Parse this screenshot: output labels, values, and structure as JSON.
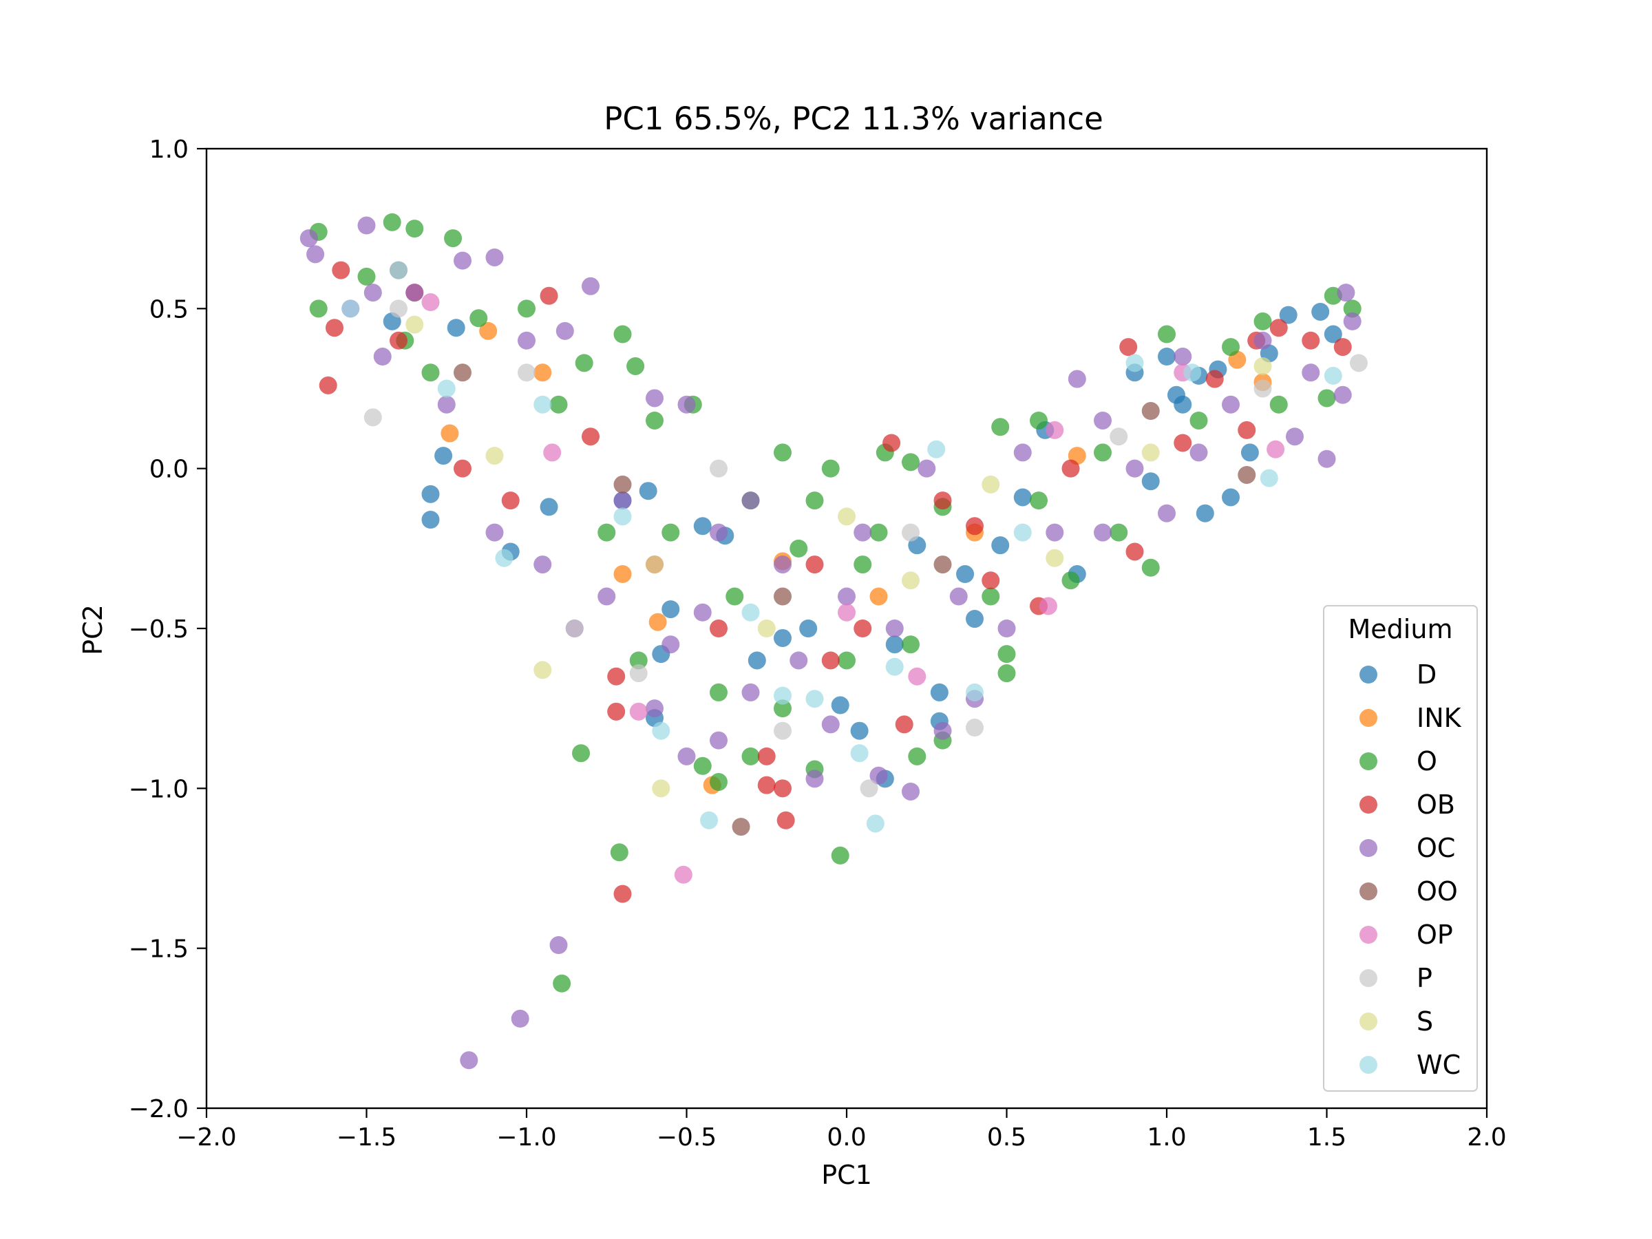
{
  "chart_data": {
    "type": "scatter",
    "title": "PC1 65.5%, PC2 11.3% variance",
    "xlabel": "PC1",
    "ylabel": "PC2",
    "xlim": [
      -2.0,
      2.0
    ],
    "ylim": [
      -2.0,
      1.0
    ],
    "xticks": [
      -2.0,
      -1.5,
      -1.0,
      -0.5,
      0.0,
      0.5,
      1.0,
      1.5,
      2.0
    ],
    "xtick_labels": [
      "−2.0",
      "−1.5",
      "−1.0",
      "−0.5",
      "0.0",
      "0.5",
      "1.0",
      "1.5",
      "2.0"
    ],
    "yticks": [
      -2.0,
      -1.5,
      -1.0,
      -0.5,
      0.0,
      0.5,
      1.0
    ],
    "ytick_labels": [
      "−2.0",
      "−1.5",
      "−1.0",
      "−0.5",
      "0.0",
      "0.5",
      "1.0"
    ],
    "grid": false,
    "legend": {
      "title": "Medium",
      "placement": "lower-right"
    },
    "series": [
      {
        "name": "D",
        "color": "#1f77b4",
        "points": [
          [
            -1.3,
            -0.16
          ],
          [
            -1.3,
            -0.08
          ],
          [
            -1.26,
            0.04
          ],
          [
            -1.22,
            0.44
          ],
          [
            -1.05,
            -0.26
          ],
          [
            -0.93,
            -0.12
          ],
          [
            -0.7,
            -0.1
          ],
          [
            -0.62,
            -0.07
          ],
          [
            -0.6,
            -0.78
          ],
          [
            -0.58,
            -0.58
          ],
          [
            -0.45,
            -0.18
          ],
          [
            -0.38,
            -0.21
          ],
          [
            -0.28,
            -0.6
          ],
          [
            -0.2,
            -0.53
          ],
          [
            -0.12,
            -0.5
          ],
          [
            -0.02,
            -0.74
          ],
          [
            0.04,
            -0.82
          ],
          [
            0.12,
            -0.97
          ],
          [
            0.15,
            -0.55
          ],
          [
            0.22,
            -0.24
          ],
          [
            0.29,
            -0.7
          ],
          [
            0.29,
            -0.79
          ],
          [
            0.37,
            -0.33
          ],
          [
            0.4,
            -0.47
          ],
          [
            0.48,
            -0.24
          ],
          [
            0.55,
            -0.09
          ],
          [
            0.72,
            -0.33
          ],
          [
            0.9,
            0.3
          ],
          [
            0.95,
            -0.04
          ],
          [
            1.03,
            0.23
          ],
          [
            1.05,
            0.2
          ],
          [
            1.1,
            0.29
          ],
          [
            1.12,
            -0.14
          ],
          [
            1.16,
            0.31
          ],
          [
            1.2,
            -0.09
          ],
          [
            1.26,
            0.05
          ],
          [
            1.32,
            0.36
          ],
          [
            1.38,
            0.48
          ],
          [
            1.48,
            0.49
          ],
          [
            1.52,
            0.42
          ],
          [
            -1.42,
            0.46
          ],
          [
            -0.55,
            -0.44
          ],
          [
            0.62,
            0.12
          ],
          [
            1.0,
            0.35
          ]
        ]
      },
      {
        "name": "INK",
        "color": "#ff7f0e",
        "points": [
          [
            -1.24,
            0.11
          ],
          [
            -1.12,
            0.43
          ],
          [
            -0.7,
            -0.33
          ],
          [
            -0.59,
            -0.48
          ],
          [
            -0.42,
            -0.99
          ],
          [
            -0.2,
            -0.29
          ],
          [
            0.72,
            0.04
          ],
          [
            1.22,
            0.34
          ],
          [
            -0.95,
            0.3
          ],
          [
            0.1,
            -0.4
          ],
          [
            0.4,
            -0.2
          ],
          [
            1.3,
            0.27
          ]
        ]
      },
      {
        "name": "O",
        "color": "#2ca02c",
        "points": [
          [
            -1.65,
            0.74
          ],
          [
            -1.65,
            0.5
          ],
          [
            -1.42,
            0.77
          ],
          [
            -1.35,
            0.75
          ],
          [
            -1.23,
            0.72
          ],
          [
            -1.0,
            0.5
          ],
          [
            -0.82,
            0.33
          ],
          [
            -0.7,
            0.42
          ],
          [
            -0.66,
            0.32
          ],
          [
            -0.48,
            0.2
          ],
          [
            -0.6,
            0.15
          ],
          [
            -0.83,
            -0.89
          ],
          [
            -0.71,
            -1.2
          ],
          [
            -0.89,
            -1.61
          ],
          [
            -0.02,
            -1.21
          ],
          [
            -0.45,
            -0.93
          ],
          [
            -0.4,
            -0.98
          ],
          [
            -0.3,
            -0.9
          ],
          [
            -0.1,
            -0.94
          ],
          [
            0.22,
            -0.9
          ],
          [
            0.3,
            -0.85
          ],
          [
            0.5,
            -0.58
          ],
          [
            0.5,
            -0.64
          ],
          [
            0.48,
            0.13
          ],
          [
            0.6,
            0.15
          ],
          [
            1.0,
            0.42
          ],
          [
            1.3,
            0.46
          ],
          [
            1.52,
            0.54
          ],
          [
            1.58,
            0.5
          ],
          [
            1.5,
            0.22
          ],
          [
            0.95,
            -0.31
          ],
          [
            0.7,
            -0.35
          ],
          [
            0.2,
            0.02
          ],
          [
            0.12,
            0.05
          ],
          [
            -0.2,
            0.05
          ],
          [
            -0.3,
            -0.1
          ],
          [
            -0.55,
            -0.2
          ],
          [
            -1.15,
            0.47
          ],
          [
            -1.3,
            0.3
          ],
          [
            -0.9,
            0.2
          ],
          [
            -0.1,
            -0.1
          ],
          [
            0.1,
            -0.2
          ],
          [
            0.3,
            -0.12
          ],
          [
            0.6,
            -0.1
          ],
          [
            0.8,
            0.05
          ],
          [
            1.1,
            0.15
          ],
          [
            1.2,
            0.38
          ],
          [
            -1.5,
            0.6
          ],
          [
            -1.38,
            0.4
          ],
          [
            -0.65,
            -0.6
          ],
          [
            -0.4,
            -0.7
          ],
          [
            -0.2,
            -0.75
          ],
          [
            0.0,
            -0.6
          ],
          [
            0.2,
            -0.55
          ],
          [
            -0.75,
            -0.2
          ],
          [
            0.85,
            -0.2
          ],
          [
            1.35,
            0.2
          ],
          [
            -0.05,
            0.0
          ],
          [
            -0.15,
            -0.25
          ],
          [
            0.05,
            -0.3
          ],
          [
            -0.35,
            -0.4
          ],
          [
            0.45,
            -0.4
          ]
        ]
      },
      {
        "name": "OB",
        "color": "#d62728",
        "points": [
          [
            -1.62,
            0.26
          ],
          [
            -1.6,
            0.44
          ],
          [
            -1.58,
            0.62
          ],
          [
            -1.4,
            0.4
          ],
          [
            -0.93,
            0.54
          ],
          [
            -0.72,
            -0.65
          ],
          [
            -0.7,
            -1.33
          ],
          [
            -0.72,
            -0.76
          ],
          [
            -0.25,
            -0.9
          ],
          [
            -0.2,
            -1.0
          ],
          [
            -0.25,
            -0.99
          ],
          [
            -0.19,
            -1.1
          ],
          [
            -0.05,
            -0.6
          ],
          [
            0.18,
            -0.8
          ],
          [
            0.14,
            0.08
          ],
          [
            0.4,
            -0.18
          ],
          [
            0.6,
            -0.43
          ],
          [
            0.88,
            0.38
          ],
          [
            0.9,
            -0.26
          ],
          [
            1.05,
            0.08
          ],
          [
            1.28,
            0.4
          ],
          [
            1.35,
            0.44
          ],
          [
            1.45,
            0.4
          ],
          [
            1.55,
            0.38
          ],
          [
            -1.2,
            0.0
          ],
          [
            -1.05,
            -0.1
          ],
          [
            -0.8,
            0.1
          ],
          [
            -0.6,
            -0.3
          ],
          [
            -0.4,
            -0.5
          ],
          [
            -0.1,
            -0.3
          ],
          [
            0.05,
            -0.5
          ],
          [
            0.3,
            -0.1
          ],
          [
            0.7,
            0.0
          ],
          [
            1.15,
            0.28
          ],
          [
            -1.35,
            0.55
          ],
          [
            0.45,
            -0.35
          ],
          [
            1.25,
            0.12
          ]
        ]
      },
      {
        "name": "OC",
        "color": "#9467bd",
        "points": [
          [
            -1.68,
            0.72
          ],
          [
            -1.66,
            0.67
          ],
          [
            -1.5,
            0.76
          ],
          [
            -1.48,
            0.55
          ],
          [
            -1.35,
            0.55
          ],
          [
            -1.2,
            0.65
          ],
          [
            -1.1,
            0.66
          ],
          [
            -1.0,
            0.4
          ],
          [
            -0.88,
            0.43
          ],
          [
            -0.8,
            0.57
          ],
          [
            -0.6,
            0.22
          ],
          [
            -0.5,
            0.2
          ],
          [
            -1.18,
            -1.85
          ],
          [
            -1.02,
            -1.72
          ],
          [
            -0.9,
            -1.49
          ],
          [
            -0.5,
            -0.9
          ],
          [
            -0.4,
            -0.85
          ],
          [
            -0.3,
            -0.7
          ],
          [
            -0.1,
            -0.97
          ],
          [
            0.1,
            -0.96
          ],
          [
            0.2,
            -1.01
          ],
          [
            0.3,
            -0.82
          ],
          [
            0.4,
            -0.72
          ],
          [
            0.5,
            -0.5
          ],
          [
            0.72,
            0.28
          ],
          [
            1.05,
            0.35
          ],
          [
            1.3,
            0.4
          ],
          [
            1.56,
            0.55
          ],
          [
            1.58,
            0.46
          ],
          [
            1.55,
            0.23
          ],
          [
            1.5,
            0.03
          ],
          [
            1.4,
            0.1
          ],
          [
            1.0,
            -0.14
          ],
          [
            0.8,
            -0.2
          ],
          [
            0.0,
            -0.4
          ],
          [
            -0.2,
            -0.3
          ],
          [
            -0.4,
            -0.2
          ],
          [
            -0.7,
            -0.1
          ],
          [
            -0.95,
            -0.3
          ],
          [
            -1.1,
            -0.2
          ],
          [
            -1.25,
            0.2
          ],
          [
            -1.45,
            0.35
          ],
          [
            -0.75,
            -0.4
          ],
          [
            -0.55,
            -0.55
          ],
          [
            -0.15,
            -0.6
          ],
          [
            0.15,
            -0.5
          ],
          [
            0.35,
            -0.4
          ],
          [
            0.65,
            -0.2
          ],
          [
            0.9,
            0.0
          ],
          [
            1.2,
            0.2
          ],
          [
            1.45,
            0.3
          ],
          [
            -1.55,
            0.5
          ],
          [
            -0.3,
            -0.1
          ],
          [
            0.25,
            0.0
          ],
          [
            -0.6,
            -0.75
          ],
          [
            -0.45,
            -0.45
          ],
          [
            0.05,
            -0.2
          ],
          [
            0.55,
            0.05
          ],
          [
            -0.85,
            -0.5
          ],
          [
            1.1,
            0.05
          ],
          [
            -0.05,
            -0.8
          ],
          [
            0.8,
            0.15
          ]
        ]
      },
      {
        "name": "OO",
        "color": "#8c564b",
        "points": [
          [
            -1.4,
            0.62
          ],
          [
            -1.2,
            0.3
          ],
          [
            -0.33,
            -1.12
          ],
          [
            -0.2,
            -0.4
          ],
          [
            0.3,
            -0.3
          ],
          [
            0.95,
            0.18
          ],
          [
            1.25,
            -0.02
          ],
          [
            -0.7,
            -0.05
          ]
        ]
      },
      {
        "name": "OP",
        "color": "#e377c2",
        "points": [
          [
            -0.51,
            -1.27
          ],
          [
            -0.65,
            -0.76
          ],
          [
            0.63,
            -0.43
          ],
          [
            1.34,
            0.06
          ],
          [
            -1.3,
            0.52
          ],
          [
            0.0,
            -0.45
          ],
          [
            0.22,
            -0.65
          ],
          [
            0.65,
            0.12
          ],
          [
            -0.92,
            0.05
          ],
          [
            1.05,
            0.3
          ]
        ]
      },
      {
        "name": "P",
        "color": "#c7c7c7",
        "points": [
          [
            -1.48,
            0.16
          ],
          [
            -1.4,
            0.5
          ],
          [
            -0.85,
            -0.5
          ],
          [
            -0.65,
            -0.64
          ],
          [
            -0.2,
            -0.82
          ],
          [
            0.07,
            -1.0
          ],
          [
            0.4,
            -0.81
          ],
          [
            1.6,
            0.33
          ],
          [
            -0.4,
            0.0
          ],
          [
            0.2,
            -0.2
          ],
          [
            0.85,
            0.1
          ],
          [
            1.3,
            0.25
          ],
          [
            -1.0,
            0.3
          ]
        ]
      },
      {
        "name": "S",
        "color": "#dbdb8d",
        "points": [
          [
            -0.95,
            -0.63
          ],
          [
            -0.58,
            -1.0
          ],
          [
            -1.1,
            0.04
          ],
          [
            -0.6,
            -0.3
          ],
          [
            0.2,
            -0.35
          ],
          [
            0.65,
            -0.28
          ],
          [
            0.95,
            0.05
          ],
          [
            1.3,
            0.32
          ],
          [
            -0.25,
            -0.5
          ],
          [
            0.45,
            -0.05
          ],
          [
            -1.35,
            0.45
          ],
          [
            0.0,
            -0.15
          ]
        ]
      },
      {
        "name": "WC",
        "color": "#9edae5",
        "points": [
          [
            -1.55,
            0.5
          ],
          [
            -1.4,
            0.62
          ],
          [
            -1.07,
            -0.28
          ],
          [
            -0.58,
            -0.82
          ],
          [
            -0.43,
            -1.1
          ],
          [
            -0.2,
            -0.71
          ],
          [
            -0.1,
            -0.72
          ],
          [
            0.04,
            -0.89
          ],
          [
            0.09,
            -1.11
          ],
          [
            0.15,
            -0.62
          ],
          [
            0.28,
            0.06
          ],
          [
            0.4,
            -0.7
          ],
          [
            0.9,
            0.33
          ],
          [
            1.32,
            -0.03
          ],
          [
            1.52,
            0.29
          ],
          [
            -0.95,
            0.2
          ],
          [
            -0.7,
            -0.15
          ],
          [
            -0.3,
            -0.45
          ],
          [
            0.55,
            -0.2
          ],
          [
            1.08,
            0.3
          ],
          [
            -1.25,
            0.25
          ]
        ]
      }
    ]
  }
}
